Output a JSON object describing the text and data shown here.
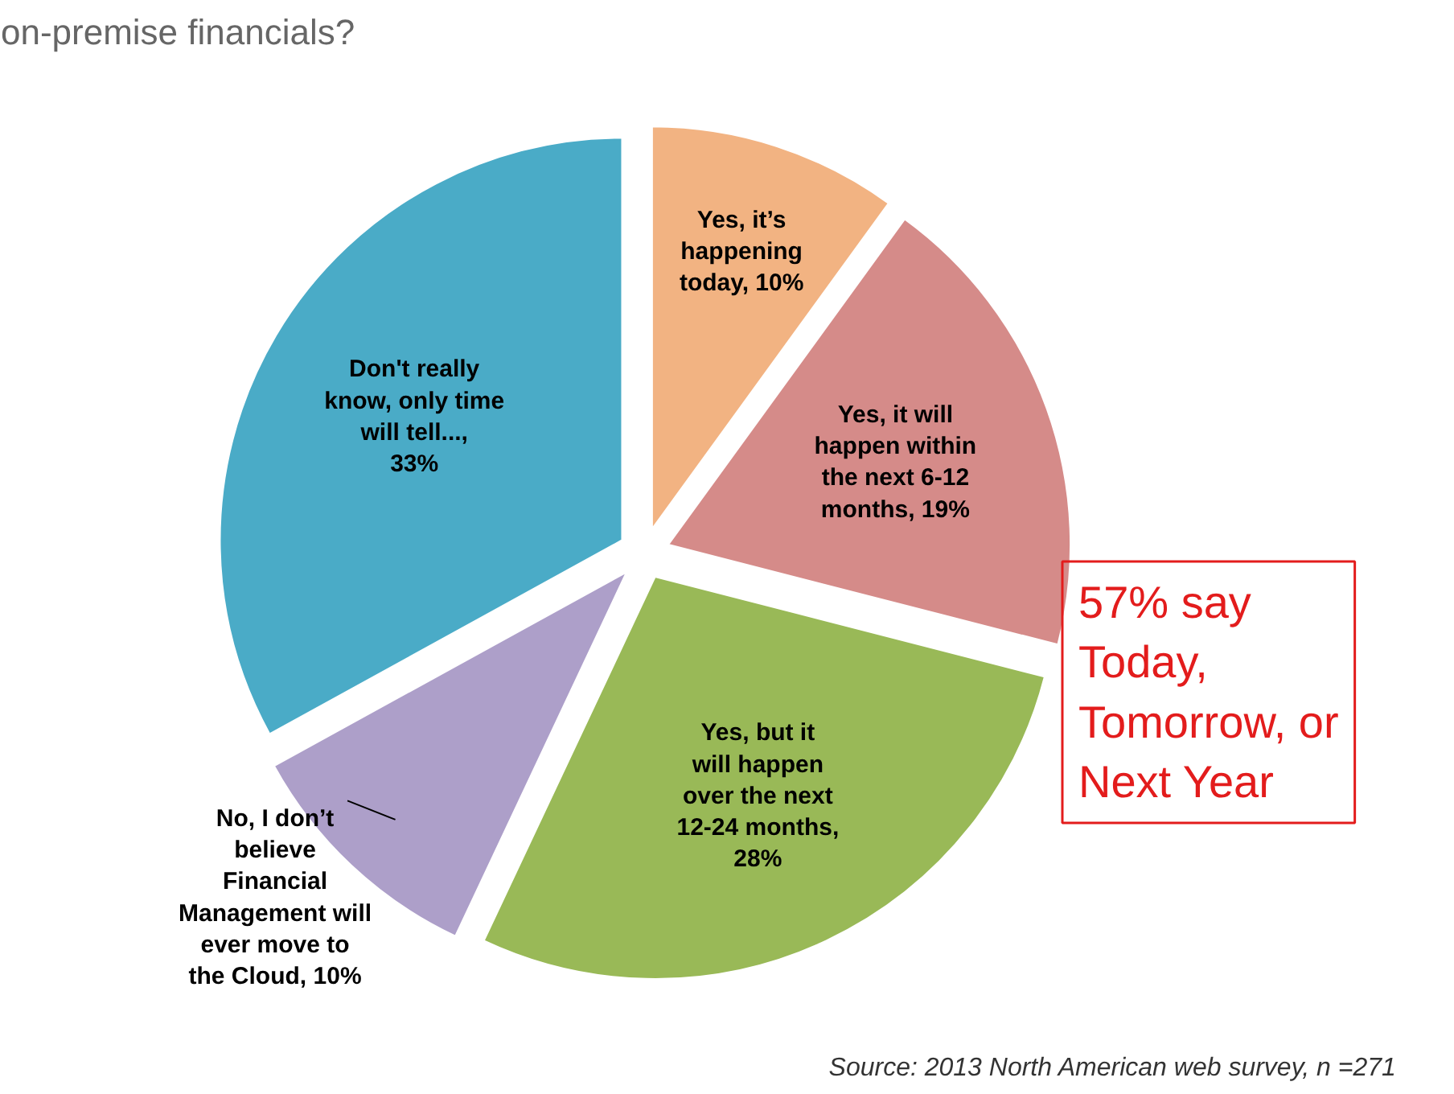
{
  "chart_data": {
    "type": "pie",
    "title": "on-premise financials?",
    "categories": [
      "Yes, it’s happening today, 10%",
      "Yes, it will happen within the next 6-12 months, 19%",
      "Yes, but it will happen over the next 12-24 months, 28%",
      "No, I don’t believe Financial Management will ever move to the Cloud, 10%",
      "Don't really know, only time will tell..., 33%"
    ],
    "values": [
      10,
      19,
      28,
      10,
      33
    ],
    "colors": [
      "#f2b382",
      "#d58b89",
      "#99b957",
      "#ad9fc9",
      "#4aabc7"
    ],
    "annotations": [
      "57% say Today, Tomorrow, or Next Year",
      "Source: 2013 North American web survey, n =271"
    ]
  }
}
